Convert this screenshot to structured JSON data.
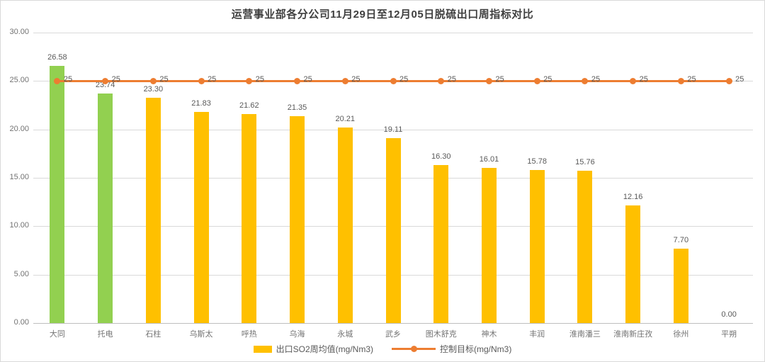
{
  "title": "运营事业部各分公司11月29日至12月05日脱硫出口周指标对比",
  "colors": {
    "bar_default": "#FFC000",
    "bar_highlight": "#92D050",
    "target_line": "#ED7D31",
    "gridline": "#D9D9D9",
    "axis_line": "#BFBFBF",
    "title_text": "#3F3F3F",
    "tick_text": "#737373",
    "data_label_text": "#595959"
  },
  "chart_data": {
    "type": "bar",
    "title": "运营事业部各分公司11月29日至12月05日脱硫出口周指标对比",
    "categories": [
      "大同",
      "托电",
      "石柱",
      "乌斯太",
      "呼热",
      "乌海",
      "永城",
      "武乡",
      "图木舒克",
      "神木",
      "丰润",
      "淮南潘三",
      "淮南新庄孜",
      "徐州",
      "平朔"
    ],
    "series": [
      {
        "name": "出口SO2周均值(mg/Nm3)",
        "type": "bar",
        "values": [
          26.58,
          23.74,
          23.3,
          21.83,
          21.62,
          21.35,
          20.21,
          19.11,
          16.3,
          16.01,
          15.78,
          15.76,
          12.16,
          7.7,
          0.0
        ],
        "value_labels": [
          "26.58",
          "23.74",
          "23.30",
          "21.83",
          "21.62",
          "21.35",
          "20.21",
          "19.11",
          "16.30",
          "16.01",
          "15.78",
          "15.76",
          "12.16",
          "7.70",
          "0.00"
        ],
        "bar_colors": [
          "#92D050",
          "#92D050",
          "#FFC000",
          "#FFC000",
          "#FFC000",
          "#FFC000",
          "#FFC000",
          "#FFC000",
          "#FFC000",
          "#FFC000",
          "#FFC000",
          "#FFC000",
          "#FFC000",
          "#FFC000",
          "#FFC000"
        ]
      },
      {
        "name": "控制目标(mg/Nm3)",
        "type": "line",
        "values": [
          25,
          25,
          25,
          25,
          25,
          25,
          25,
          25,
          25,
          25,
          25,
          25,
          25,
          25,
          25
        ],
        "value_labels": [
          "25",
          "25",
          "25",
          "25",
          "25",
          "25",
          "25",
          "25",
          "25",
          "25",
          "25",
          "25",
          "25",
          "25",
          "25"
        ]
      }
    ],
    "xlabel": "",
    "ylabel": "",
    "ylim": [
      0,
      30
    ],
    "ytick_labels": [
      "30.00",
      "25.00",
      "20.00",
      "15.00",
      "10.00",
      "5.00",
      "0.00"
    ],
    "ytick_values": [
      30,
      25,
      20,
      15,
      10,
      5,
      0
    ],
    "grid": "horizontal",
    "legend_position": "bottom"
  },
  "legend": {
    "bar_label": "出口SO2周均值(mg/Nm3)",
    "line_label": "控制目标(mg/Nm3)"
  }
}
